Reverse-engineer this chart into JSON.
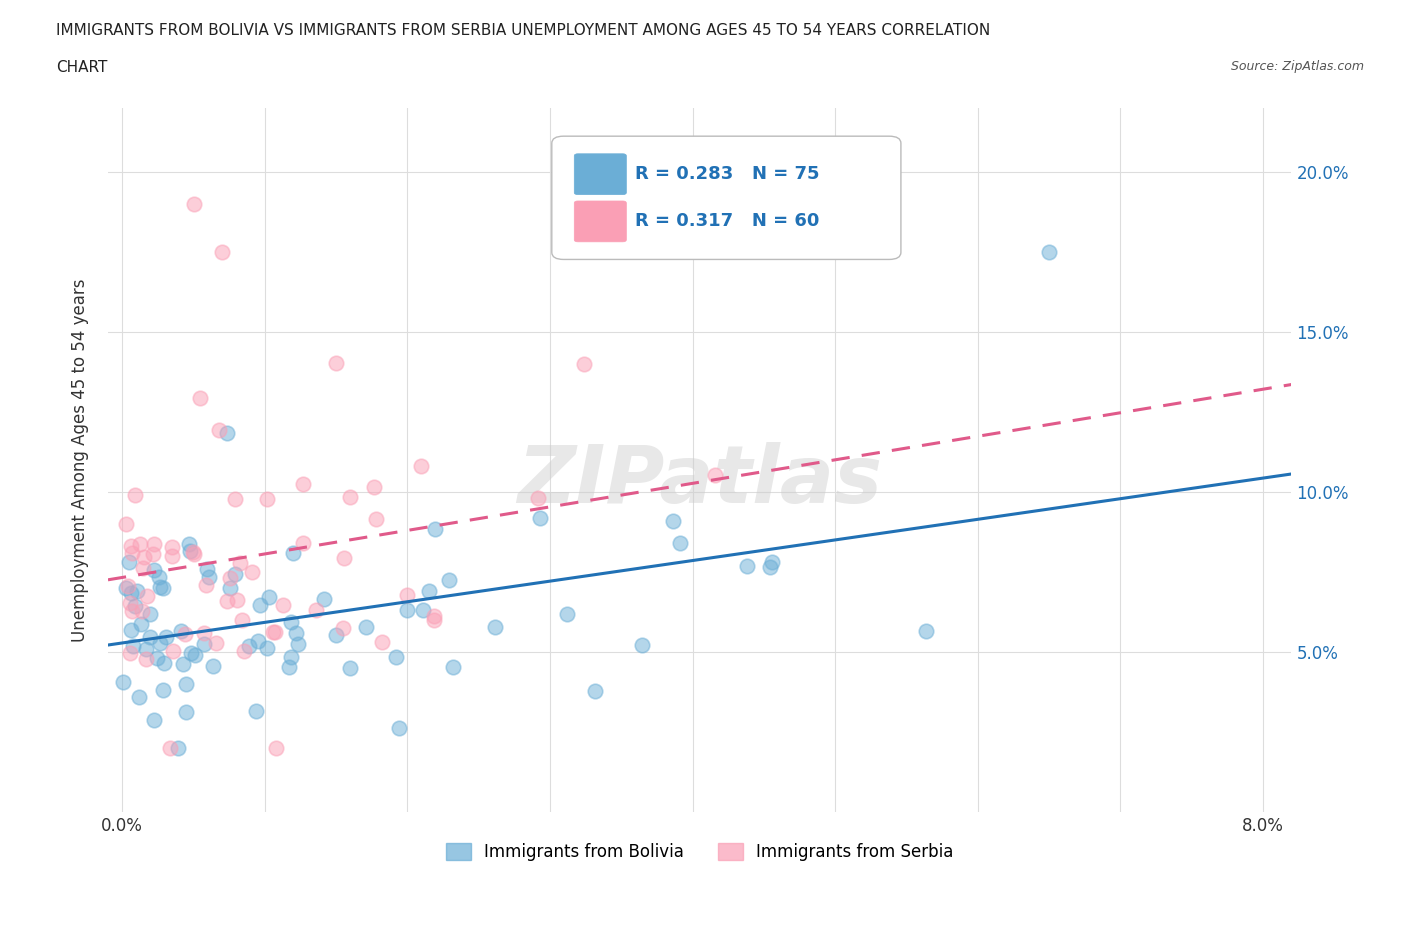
{
  "title_line1": "IMMIGRANTS FROM BOLIVIA VS IMMIGRANTS FROM SERBIA UNEMPLOYMENT AMONG AGES 45 TO 54 YEARS CORRELATION",
  "title_line2": "CHART",
  "source_text": "Source: ZipAtlas.com",
  "ylabel": "Unemployment Among Ages 45 to 54 years",
  "legend_label_bolivia": "Immigrants from Bolivia",
  "legend_label_serbia": "Immigrants from Serbia",
  "R_bolivia": 0.283,
  "N_bolivia": 75,
  "R_serbia": 0.317,
  "N_serbia": 60,
  "color_bolivia": "#6baed6",
  "color_serbia": "#fa9fb5",
  "line_color_bolivia": "#2171b5",
  "line_color_serbia": "#e05a8a",
  "xlim": [
    -0.001,
    0.082
  ],
  "ylim": [
    0.0,
    0.22
  ],
  "yticks": [
    0.05,
    0.1,
    0.15,
    0.2
  ],
  "yticklabels": [
    "5.0%",
    "10.0%",
    "15.0%",
    "20.0%"
  ],
  "xticks": [
    0.0,
    0.01,
    0.02,
    0.03,
    0.04,
    0.05,
    0.06,
    0.07,
    0.08
  ],
  "xticklabels": [
    "0.0%",
    "",
    "",
    "",
    "",
    "",
    "",
    "",
    "8.0%"
  ],
  "watermark": "ZIPatlas",
  "background_color": "#ffffff",
  "grid_color": "#dddddd"
}
